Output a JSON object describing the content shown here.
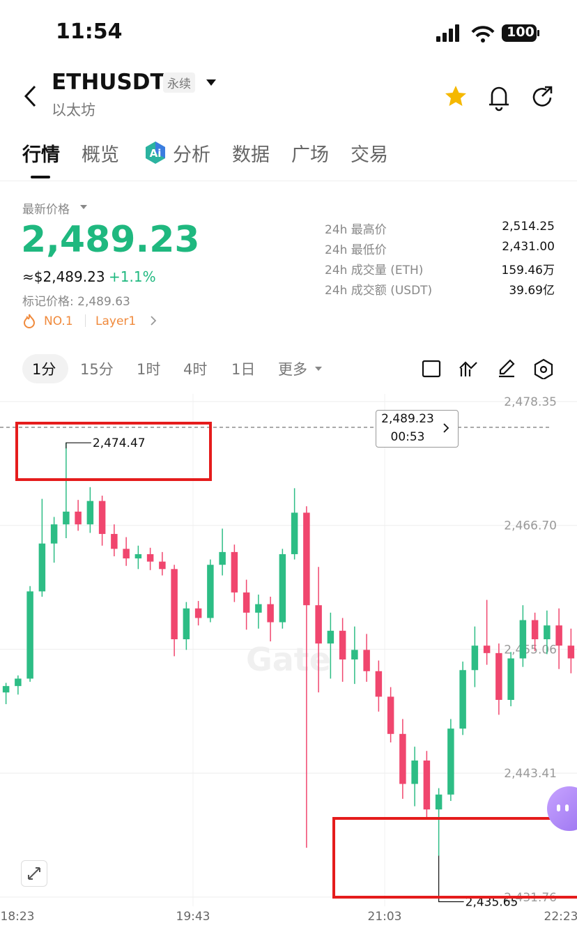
{
  "status_bar": {
    "time": "11:54",
    "battery": "100"
  },
  "header": {
    "symbol": "ETHUSDT",
    "contract": "永续",
    "name": "以太坊"
  },
  "tabs": [
    "行情",
    "概览",
    "分析",
    "数据",
    "广场",
    "交易"
  ],
  "price": {
    "label": "最新价格",
    "last": "2,489.23",
    "usd": "≈$2,489.23",
    "change": "+1.1%",
    "mark": "标记价格: 2,489.63",
    "rank": "NO.1",
    "sector": "Layer1"
  },
  "stats": [
    {
      "label": "24h 最高价",
      "value": "2,514.25"
    },
    {
      "label": "24h 最低价",
      "value": "2,431.00"
    },
    {
      "label": "24h 成交量 (ETH)",
      "value": "159.46万"
    },
    {
      "label": "24h 成交额 (USDT)",
      "value": "39.69亿"
    }
  ],
  "timeframes": [
    "1分",
    "15分",
    "1时",
    "4时",
    "1日",
    "更多"
  ],
  "chart_data": {
    "type": "candlestick",
    "open": [
      2451.0,
      2451.6,
      2452.3,
      2460.5,
      2465.0,
      2466.8,
      2468.0,
      2466.8,
      2469.0,
      2465.9,
      2464.5,
      2463.6,
      2464.0,
      2463.3,
      2462.6,
      2456.0,
      2458.9,
      2458.0,
      2463.0,
      2464.2,
      2460.4,
      2458.5,
      2459.3,
      2457.6,
      2464.0,
      2467.9,
      2459.2,
      2455.6,
      2456.8,
      2454.1,
      2455.0,
      2453.0,
      2450.6,
      2447.1,
      2442.4,
      2444.6,
      2440.0,
      2441.4,
      2447.6,
      2453.1,
      2455.4,
      2454.7,
      2450.3,
      2454.2,
      2457.8,
      2456.0,
      2457.3,
      2455.4
    ],
    "high": [
      2451.9,
      2452.6,
      2461.0,
      2469.2,
      2467.5,
      2474.47,
      2469.1,
      2470.3,
      2469.5,
      2466.8,
      2465.6,
      2464.8,
      2464.6,
      2464.2,
      2463.0,
      2459.5,
      2459.6,
      2463.5,
      2466.4,
      2464.9,
      2461.6,
      2460.2,
      2460.0,
      2464.5,
      2470.2,
      2468.5,
      2462.8,
      2458.5,
      2458.0,
      2457.2,
      2456.5,
      2454.0,
      2451.5,
      2448.5,
      2445.9,
      2445.5,
      2442.0,
      2448.5,
      2453.9,
      2457.2,
      2459.7,
      2455.6,
      2454.8,
      2459.2,
      2458.5,
      2458.7,
      2458.9,
      2457.0
    ],
    "low": [
      2449.9,
      2450.8,
      2452.0,
      2460.0,
      2463.2,
      2465.5,
      2466.2,
      2466.0,
      2464.8,
      2463.8,
      2462.9,
      2462.6,
      2462.5,
      2462.0,
      2454.4,
      2455.0,
      2457.3,
      2457.6,
      2462.0,
      2459.5,
      2456.9,
      2457.0,
      2455.8,
      2457.0,
      2463.5,
      2436.4,
      2451.0,
      2452.3,
      2452.0,
      2451.8,
      2452.0,
      2449.2,
      2446.3,
      2441.0,
      2440.3,
      2439.2,
      2435.65,
      2440.8,
      2447.0,
      2451.5,
      2453.6,
      2448.9,
      2449.7,
      2453.4,
      2454.9,
      2454.6,
      2453.2,
      2452.8
    ],
    "close": [
      2451.6,
      2452.3,
      2460.5,
      2465.0,
      2466.8,
      2468.0,
      2466.8,
      2469.0,
      2465.9,
      2464.5,
      2463.6,
      2464.0,
      2463.3,
      2462.6,
      2456.0,
      2458.9,
      2458.0,
      2463.0,
      2464.2,
      2460.4,
      2458.5,
      2459.3,
      2457.6,
      2464.0,
      2467.9,
      2459.2,
      2455.6,
      2456.8,
      2454.1,
      2455.0,
      2453.0,
      2450.6,
      2447.1,
      2442.4,
      2444.6,
      2440.0,
      2441.4,
      2447.6,
      2453.1,
      2455.4,
      2454.7,
      2450.3,
      2454.2,
      2457.8,
      2456.0,
      2457.3,
      2455.4,
      2454.2
    ],
    "ylim": [
      2430.9,
      2479.07
    ],
    "yticks": [
      {
        "value": 2431.76,
        "label": "2,431.76"
      },
      {
        "value": 2443.41,
        "label": "2,443.41"
      },
      {
        "value": 2455.06,
        "label": "2,455.06"
      },
      {
        "value": 2466.7,
        "label": "2,466.70"
      },
      {
        "value": 2478.35,
        "label": "2,478.35"
      }
    ],
    "x_labels": [
      "18:23",
      "19:43",
      "21:03",
      "22:23"
    ],
    "up_color": "#2dbd85",
    "down_color": "#f0466e",
    "annotations": [
      {
        "value": 2474.47,
        "label": "2,474.47"
      },
      {
        "value": 2435.65,
        "label": "2,435.65"
      }
    ],
    "price_tag": {
      "price": "2,489.23",
      "countdown": "00:53"
    }
  }
}
